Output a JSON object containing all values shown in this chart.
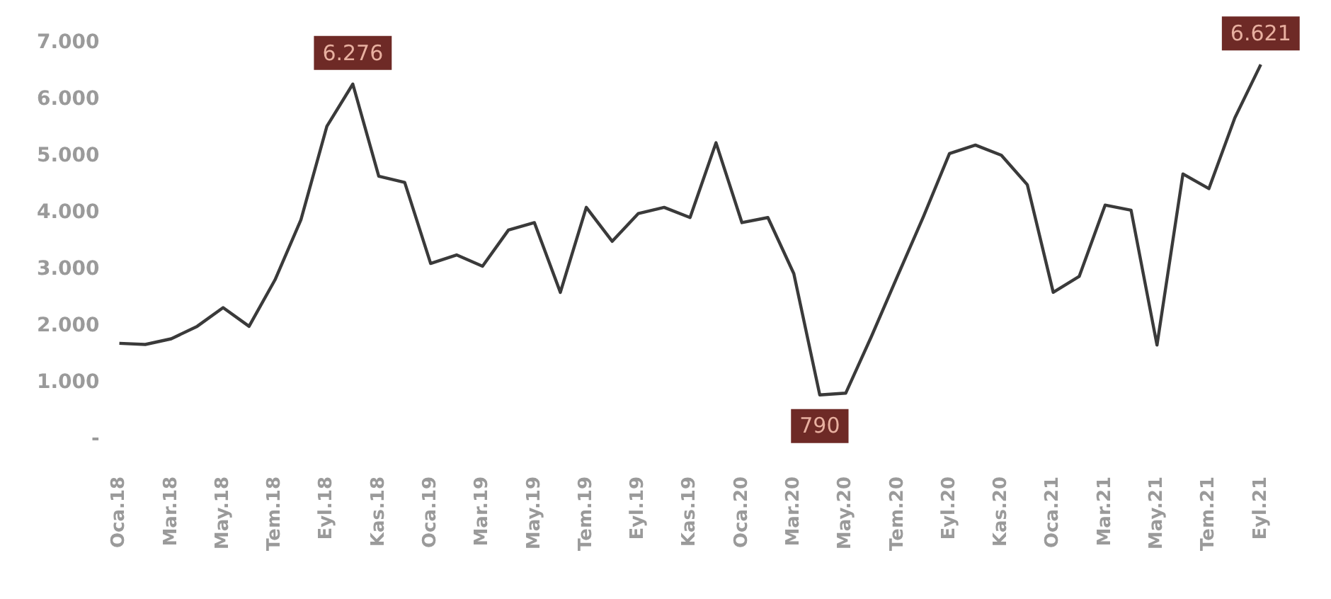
{
  "chart_data": {
    "type": "line",
    "categories": [
      "Oca.18",
      null,
      "Mar.18",
      null,
      "May.18",
      null,
      "Tem.18",
      null,
      "Eyl.18",
      null,
      "Kas.18",
      null,
      "Oca.19",
      null,
      "Mar.19",
      null,
      "May.19",
      null,
      "Tem.19",
      null,
      "Eyl.19",
      null,
      "Kas.19",
      null,
      "Oca.20",
      null,
      "Mar.20",
      null,
      "May.20",
      null,
      "Tem.20",
      null,
      "Eyl.20",
      null,
      "Kas.20",
      null,
      "Oca.21",
      null,
      "Mar.21",
      null,
      "May.21",
      null,
      "Tem.21",
      null,
      "Eyl.21"
    ],
    "series": [
      {
        "color": "#3a3a3a",
        "values": [
          1700,
          1680,
          1780,
          2000,
          2330,
          2000,
          2820,
          3880,
          5530,
          6276,
          4650,
          4540,
          3110,
          3260,
          3060,
          3700,
          3830,
          2600,
          4100,
          3500,
          3990,
          4100,
          3920,
          5240,
          3830,
          3920,
          2930,
          790,
          820,
          1830,
          2890,
          3940,
          5050,
          5200,
          5020,
          4500,
          2600,
          2880,
          4140,
          4050,
          1670,
          4690,
          4430,
          5680,
          6621
        ],
        "value_labels": [
          null,
          null,
          null,
          null,
          null,
          null,
          null,
          null,
          null,
          "6.276",
          null,
          null,
          null,
          null,
          null,
          null,
          null,
          null,
          null,
          null,
          null,
          null,
          null,
          null,
          null,
          null,
          null,
          "790",
          null,
          null,
          null,
          null,
          null,
          null,
          null,
          null,
          null,
          null,
          null,
          null,
          null,
          null,
          null,
          null,
          "6.621"
        ]
      }
    ],
    "ylim": [
      0,
      7000
    ],
    "yticks": [
      {
        "value": 0,
        "label": "-"
      },
      {
        "value": 1000,
        "label": "1.000"
      },
      {
        "value": 2000,
        "label": "2.000"
      },
      {
        "value": 3000,
        "label": "3.000"
      },
      {
        "value": 4000,
        "label": "4.000"
      },
      {
        "value": 5000,
        "label": "5.000"
      },
      {
        "value": 6000,
        "label": "6.000"
      },
      {
        "value": 7000,
        "label": "7.000"
      }
    ],
    "grid": false,
    "legend": false,
    "marker": "none",
    "line_style": "solid"
  }
}
